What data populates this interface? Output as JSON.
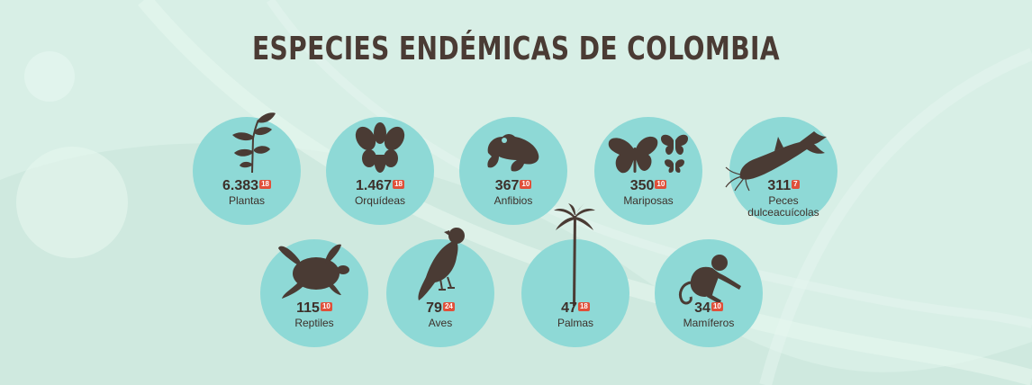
{
  "title": "ESPECIES ENDÉMICAS DE COLOMBIA",
  "colors": {
    "background": "#d8efe6",
    "circle": "#8ed9d6",
    "silhouette": "#4a3b34",
    "badge": "#e0503a"
  },
  "items": [
    {
      "count": "6.383",
      "ref": "18",
      "label": "Plantas",
      "icon": "plant-icon"
    },
    {
      "count": "1.467",
      "ref": "18",
      "label": "Orquídeas",
      "icon": "orchid-icon"
    },
    {
      "count": "367",
      "ref": "10",
      "label": "Anfibios",
      "icon": "frog-icon"
    },
    {
      "count": "350",
      "ref": "10",
      "label": "Mariposas",
      "icon": "butterfly-icon"
    },
    {
      "count": "311",
      "ref": "7",
      "label": "Peces dulceacuícolas",
      "icon": "catfish-icon"
    },
    {
      "count": "115",
      "ref": "10",
      "label": "Reptiles",
      "icon": "turtle-icon"
    },
    {
      "count": "79",
      "ref": "24",
      "label": "Aves",
      "icon": "bird-icon"
    },
    {
      "count": "47",
      "ref": "18",
      "label": "Palmas",
      "icon": "palm-icon"
    },
    {
      "count": "34",
      "ref": "10",
      "label": "Mamíferos",
      "icon": "monkey-icon"
    }
  ]
}
